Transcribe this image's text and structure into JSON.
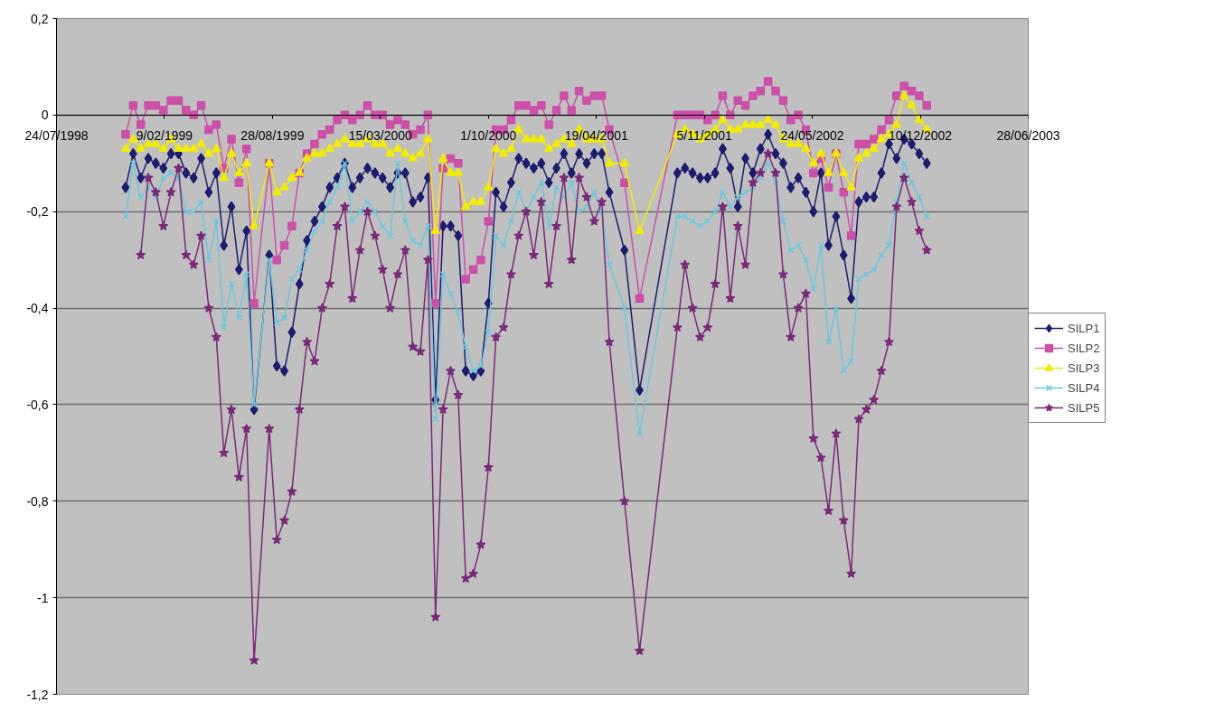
{
  "chart_data": {
    "type": "line",
    "xlim": [
      "1998-07-24",
      "2003-06-28"
    ],
    "xticks": [
      {
        "value": "1998-07-24",
        "label": "24/07/1998"
      },
      {
        "value": "1999-02-09",
        "label": "9/02/1999"
      },
      {
        "value": "1999-08-28",
        "label": "28/08/1999"
      },
      {
        "value": "2000-03-15",
        "label": "15/03/2000"
      },
      {
        "value": "2000-10-01",
        "label": "1/10/2000"
      },
      {
        "value": "2001-04-19",
        "label": "19/04/2001"
      },
      {
        "value": "2001-11-05",
        "label": "5/11/2001"
      },
      {
        "value": "2002-05-24",
        "label": "24/05/2002"
      },
      {
        "value": "2002-12-10",
        "label": "10/12/2002"
      },
      {
        "value": "2003-06-28",
        "label": "28/06/2003"
      }
    ],
    "ylim": [
      -1.2,
      0.2
    ],
    "yticks": [
      {
        "value": 0.2,
        "label": "0,2"
      },
      0,
      {
        "value": -0.2,
        "label": "-0,2"
      },
      {
        "value": -0.4,
        "label": "-0,4"
      },
      {
        "value": -0.6,
        "label": "-0,6"
      },
      {
        "value": -0.8,
        "label": "-0,8"
      },
      -1,
      {
        "value": -1.2,
        "label": "-1,2"
      }
    ],
    "grid": "y",
    "legend": "right",
    "x": [
      "1998-11-29",
      "1998-12-13",
      "1998-12-27",
      "1999-01-10",
      "1999-01-24",
      "1999-02-07",
      "1999-02-21",
      "1999-03-07",
      "1999-03-21",
      "1999-04-04",
      "1999-04-18",
      "1999-05-02",
      "1999-05-16",
      "1999-05-30",
      "1999-06-13",
      "1999-06-27",
      "1999-07-11",
      "1999-07-25",
      "1999-08-22",
      "1999-09-05",
      "1999-09-19",
      "1999-10-03",
      "1999-10-17",
      "1999-10-31",
      "1999-11-14",
      "1999-11-28",
      "1999-12-12",
      "1999-12-26",
      "2000-01-09",
      "2000-01-23",
      "2000-02-06",
      "2000-02-20",
      "2000-03-05",
      "2000-03-19",
      "2000-04-02",
      "2000-04-16",
      "2000-04-30",
      "2000-05-14",
      "2000-05-28",
      "2000-06-11",
      "2000-06-25",
      "2000-07-09",
      "2000-07-23",
      "2000-08-06",
      "2000-08-20",
      "2000-09-03",
      "2000-09-17",
      "2000-10-01",
      "2000-10-15",
      "2000-10-29",
      "2000-11-12",
      "2000-11-26",
      "2000-12-10",
      "2000-12-24",
      "2001-01-07",
      "2001-01-21",
      "2001-02-04",
      "2001-02-18",
      "2001-03-04",
      "2001-03-18",
      "2001-04-01",
      "2001-04-15",
      "2001-04-29",
      "2001-05-13",
      "2001-06-10",
      "2001-07-08",
      "2001-09-16",
      "2001-09-30",
      "2001-10-14",
      "2001-10-28",
      "2001-11-11",
      "2001-11-25",
      "2001-12-09",
      "2001-12-23",
      "2002-01-06",
      "2002-01-20",
      "2002-02-03",
      "2002-02-17",
      "2002-03-03",
      "2002-03-17",
      "2002-03-31",
      "2002-04-14",
      "2002-04-28",
      "2002-05-12",
      "2002-05-26",
      "2002-06-09",
      "2002-06-23",
      "2002-07-07",
      "2002-07-21",
      "2002-08-04",
      "2002-08-18",
      "2002-09-01",
      "2002-09-15",
      "2002-09-29",
      "2002-10-13",
      "2002-10-27",
      "2002-11-10",
      "2002-11-24",
      "2002-12-08",
      "2002-12-22"
    ],
    "series": [
      {
        "name": "SILP1",
        "color": "#1c1c6e",
        "marker": "diamond",
        "values": [
          -0.15,
          -0.08,
          -0.13,
          -0.09,
          -0.1,
          -0.11,
          -0.08,
          -0.08,
          -0.12,
          -0.13,
          -0.09,
          -0.16,
          -0.12,
          -0.27,
          -0.19,
          -0.32,
          -0.24,
          -0.61,
          -0.29,
          -0.52,
          -0.53,
          -0.45,
          -0.35,
          -0.26,
          -0.22,
          -0.19,
          -0.15,
          -0.13,
          -0.1,
          -0.15,
          -0.13,
          -0.11,
          -0.12,
          -0.13,
          -0.15,
          -0.12,
          -0.12,
          -0.18,
          -0.17,
          -0.13,
          -0.59,
          -0.23,
          -0.23,
          -0.25,
          -0.53,
          -0.54,
          -0.53,
          -0.39,
          -0.16,
          -0.19,
          -0.14,
          -0.09,
          -0.1,
          -0.11,
          -0.1,
          -0.14,
          -0.11,
          -0.08,
          -0.12,
          -0.08,
          -0.1,
          -0.08,
          -0.08,
          -0.16,
          -0.28,
          -0.57,
          -0.12,
          -0.11,
          -0.12,
          -0.13,
          -0.13,
          -0.12,
          -0.07,
          -0.11,
          -0.19,
          -0.09,
          -0.12,
          -0.07,
          -0.04,
          -0.08,
          -0.1,
          -0.15,
          -0.13,
          -0.16,
          -0.2,
          -0.12,
          -0.27,
          -0.21,
          -0.29,
          -0.38,
          -0.18,
          -0.17,
          -0.17,
          -0.12,
          -0.06,
          -0.09,
          -0.05,
          -0.06,
          -0.08,
          -0.1
        ]
      },
      {
        "name": "SILP2",
        "color": "#cc4fa8",
        "marker": "square",
        "values": [
          -0.04,
          0.02,
          -0.02,
          0.02,
          0.02,
          0.01,
          0.03,
          0.03,
          0.01,
          0,
          0.02,
          -0.03,
          -0.02,
          -0.11,
          -0.05,
          -0.14,
          -0.07,
          -0.39,
          -0.1,
          -0.3,
          -0.27,
          -0.23,
          -0.12,
          -0.08,
          -0.06,
          -0.04,
          -0.03,
          -0.01,
          0,
          -0.01,
          0,
          0.02,
          0,
          0,
          -0.02,
          -0.01,
          -0.02,
          -0.04,
          -0.03,
          0,
          -0.39,
          -0.11,
          -0.09,
          -0.1,
          -0.34,
          -0.32,
          -0.3,
          -0.22,
          -0.03,
          -0.03,
          -0.01,
          0.02,
          0.02,
          0.01,
          0.02,
          -0.02,
          0.01,
          0.04,
          0.01,
          0.05,
          0.03,
          0.04,
          0.04,
          -0.03,
          -0.14,
          -0.38,
          0,
          0,
          0,
          0,
          -0.01,
          0,
          0.04,
          0,
          0.03,
          0.02,
          0.04,
          0.05,
          0.07,
          0.05,
          0.03,
          -0.01,
          0,
          -0.03,
          -0.12,
          -0.09,
          -0.15,
          -0.08,
          -0.16,
          -0.25,
          -0.06,
          -0.06,
          -0.05,
          -0.03,
          -0.01,
          0.04,
          0.06,
          0.05,
          0.04,
          0.02
        ]
      },
      {
        "name": "SILP3",
        "color": "#f2ec00",
        "marker": "triangle",
        "values": [
          -0.07,
          -0.05,
          -0.07,
          -0.06,
          -0.06,
          -0.07,
          -0.05,
          -0.07,
          -0.07,
          -0.07,
          -0.06,
          -0.08,
          -0.07,
          -0.13,
          -0.08,
          -0.12,
          -0.1,
          -0.23,
          -0.1,
          -0.16,
          -0.15,
          -0.13,
          -0.12,
          -0.09,
          -0.08,
          -0.08,
          -0.07,
          -0.06,
          -0.05,
          -0.06,
          -0.06,
          -0.05,
          -0.06,
          -0.06,
          -0.08,
          -0.07,
          -0.08,
          -0.09,
          -0.08,
          -0.05,
          -0.24,
          -0.09,
          -0.12,
          -0.12,
          -0.19,
          -0.18,
          -0.18,
          -0.15,
          -0.07,
          -0.08,
          -0.07,
          -0.03,
          -0.05,
          -0.05,
          -0.05,
          -0.07,
          -0.06,
          -0.05,
          -0.06,
          -0.03,
          -0.05,
          -0.05,
          -0.05,
          -0.1,
          -0.1,
          -0.24,
          -0.04,
          -0.03,
          -0.04,
          -0.05,
          -0.04,
          -0.03,
          -0.01,
          -0.03,
          -0.03,
          -0.02,
          -0.02,
          -0.02,
          -0.01,
          -0.02,
          -0.05,
          -0.06,
          -0.06,
          -0.07,
          -0.1,
          -0.08,
          -0.12,
          -0.08,
          -0.12,
          -0.15,
          -0.09,
          -0.08,
          -0.07,
          -0.05,
          -0.04,
          -0.02,
          0.04,
          0.02,
          -0.01,
          -0.03
        ]
      },
      {
        "name": "SILP4",
        "color": "#6cc8dc",
        "marker": "cross",
        "values": [
          -0.21,
          -0.1,
          -0.17,
          -0.15,
          -0.17,
          -0.13,
          -0.12,
          -0.13,
          -0.2,
          -0.2,
          -0.18,
          -0.3,
          -0.22,
          -0.44,
          -0.35,
          -0.42,
          -0.33,
          -0.6,
          -0.3,
          -0.43,
          -0.42,
          -0.34,
          -0.32,
          -0.28,
          -0.24,
          -0.22,
          -0.18,
          -0.15,
          -0.1,
          -0.22,
          -0.2,
          -0.18,
          -0.2,
          -0.23,
          -0.25,
          -0.1,
          -0.22,
          -0.26,
          -0.27,
          -0.23,
          -0.63,
          -0.33,
          -0.37,
          -0.41,
          -0.48,
          -0.53,
          -0.52,
          -0.45,
          -0.25,
          -0.27,
          -0.22,
          -0.16,
          -0.2,
          -0.17,
          -0.14,
          -0.23,
          -0.15,
          -0.17,
          -0.14,
          -0.2,
          -0.19,
          -0.16,
          -0.2,
          -0.31,
          -0.4,
          -0.66,
          -0.21,
          -0.21,
          -0.22,
          -0.23,
          -0.22,
          -0.2,
          -0.16,
          -0.19,
          -0.17,
          -0.16,
          -0.15,
          -0.13,
          -0.1,
          -0.14,
          -0.22,
          -0.28,
          -0.27,
          -0.3,
          -0.36,
          -0.27,
          -0.47,
          -0.4,
          -0.53,
          -0.51,
          -0.34,
          -0.33,
          -0.32,
          -0.29,
          -0.27,
          -0.18,
          -0.1,
          -0.14,
          -0.17,
          -0.21
        ]
      },
      {
        "name": "SILP5",
        "color": "#7a2878",
        "marker": "star",
        "values": [
          null,
          null,
          -0.29,
          -0.13,
          -0.16,
          -0.23,
          -0.16,
          -0.11,
          -0.29,
          -0.31,
          -0.25,
          -0.4,
          -0.46,
          -0.7,
          -0.61,
          -0.75,
          -0.65,
          -1.13,
          -0.65,
          -0.88,
          -0.84,
          -0.78,
          -0.61,
          -0.47,
          -0.51,
          -0.4,
          -0.35,
          -0.23,
          -0.19,
          -0.38,
          -0.28,
          -0.2,
          -0.25,
          -0.32,
          -0.4,
          -0.33,
          -0.28,
          -0.48,
          -0.49,
          -0.3,
          -1.04,
          -0.61,
          -0.53,
          -0.58,
          -0.96,
          -0.95,
          -0.89,
          -0.73,
          -0.46,
          -0.44,
          -0.33,
          -0.25,
          -0.2,
          -0.29,
          -0.18,
          -0.35,
          -0.23,
          -0.13,
          -0.3,
          -0.13,
          -0.17,
          -0.22,
          -0.18,
          -0.47,
          -0.8,
          -1.11,
          -0.44,
          -0.31,
          -0.4,
          -0.46,
          -0.44,
          -0.35,
          -0.19,
          -0.38,
          -0.23,
          -0.31,
          -0.14,
          -0.12,
          -0.08,
          -0.12,
          -0.33,
          -0.46,
          -0.4,
          -0.37,
          -0.67,
          -0.71,
          -0.82,
          -0.66,
          -0.84,
          -0.95,
          -0.63,
          -0.61,
          -0.59,
          -0.53,
          -0.47,
          -0.19,
          -0.13,
          -0.18,
          -0.24,
          -0.28
        ]
      }
    ]
  }
}
